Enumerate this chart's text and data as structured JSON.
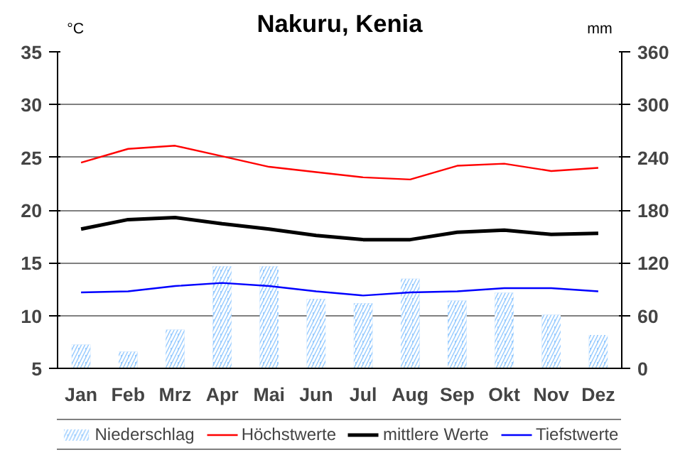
{
  "chart_data": {
    "type": "line",
    "title": "Nakuru, Kenia",
    "ylabel": "°C",
    "y2label": "mm",
    "categories": [
      "Jan",
      "Feb",
      "Mrz",
      "Apr",
      "Mai",
      "Jun",
      "Jul",
      "Aug",
      "Sep",
      "Okt",
      "Nov",
      "Dez"
    ],
    "ylim": [
      5,
      35
    ],
    "yticks": [
      5,
      10,
      15,
      20,
      25,
      30,
      35
    ],
    "y2lim": [
      0,
      360
    ],
    "y2ticks": [
      0,
      60,
      120,
      180,
      240,
      300,
      360
    ],
    "grid": "y",
    "legend": "bottom",
    "series": [
      {
        "name": "Niederschlag",
        "type": "bar",
        "axis": "y2",
        "color": "#99ccff",
        "values": [
          27,
          19,
          44,
          116,
          116,
          79,
          74,
          102,
          77,
          86,
          61,
          38
        ]
      },
      {
        "name": "Höchstwerte",
        "color": "#ff0000",
        "values": [
          24.5,
          25.8,
          26.1,
          25.1,
          24.1,
          23.6,
          23.1,
          22.9,
          24.2,
          24.4,
          23.7,
          24.0
        ]
      },
      {
        "name": "mittlere Werte",
        "color": "#000000",
        "values": [
          18.2,
          19.1,
          19.3,
          18.7,
          18.2,
          17.6,
          17.2,
          17.2,
          17.9,
          18.1,
          17.7,
          17.8
        ]
      },
      {
        "name": "Tiefstwerte",
        "color": "#0000ff",
        "values": [
          12.2,
          12.3,
          12.8,
          13.1,
          12.8,
          12.3,
          11.9,
          12.2,
          12.3,
          12.6,
          12.6,
          12.3
        ]
      }
    ]
  }
}
